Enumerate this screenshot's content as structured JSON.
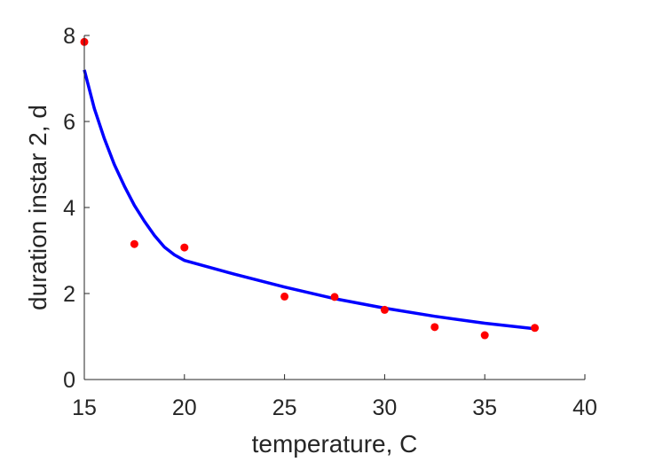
{
  "chart_data": {
    "type": "scatter",
    "title": "",
    "xlabel": "temperature, C",
    "ylabel": "duration instar 2, d",
    "xlim": [
      15,
      40
    ],
    "ylim": [
      0,
      8
    ],
    "xticks": [
      15,
      20,
      25,
      30,
      35,
      40
    ],
    "yticks": [
      0,
      2,
      4,
      6,
      8
    ],
    "grid": false,
    "series": [
      {
        "kind": "scatter",
        "color": "#ff0000",
        "x": [
          15,
          17.5,
          20,
          25,
          27.5,
          30,
          32.5,
          35,
          37.5
        ],
        "y": [
          7.85,
          3.15,
          3.07,
          1.93,
          1.92,
          1.62,
          1.22,
          1.03,
          1.2
        ]
      },
      {
        "kind": "line",
        "color": "#0000ff",
        "x": [
          15,
          15.5,
          16,
          16.5,
          17,
          17.5,
          18,
          18.5,
          19,
          19.5,
          20,
          22.5,
          25,
          27.5,
          30,
          32.5,
          35,
          37.5
        ],
        "y": [
          7.2,
          6.3,
          5.6,
          5.0,
          4.5,
          4.05,
          3.68,
          3.35,
          3.08,
          2.9,
          2.77,
          2.45,
          2.15,
          1.88,
          1.66,
          1.47,
          1.31,
          1.18
        ]
      }
    ]
  }
}
